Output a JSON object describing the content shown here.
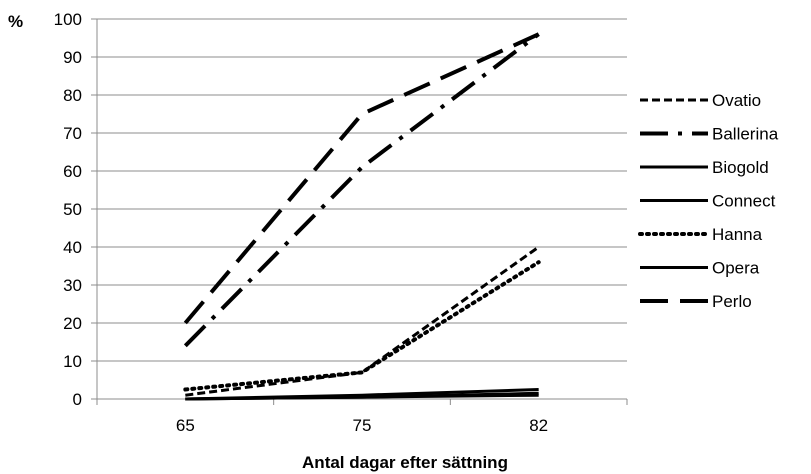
{
  "chart_data": {
    "type": "line",
    "title": "",
    "xlabel": "Antal dagar efter sättning",
    "ylabel": "%",
    "categories": [
      "65",
      "75",
      "82"
    ],
    "ylim": [
      0,
      100
    ],
    "yticks": [
      0,
      10,
      20,
      30,
      40,
      50,
      60,
      70,
      80,
      90,
      100
    ],
    "grid": "horizontal",
    "legend_position": "right",
    "series": [
      {
        "name": "Ovatio",
        "values": [
          1,
          7,
          40
        ],
        "style": "short-dash",
        "color": "#000000"
      },
      {
        "name": "Ballerina",
        "values": [
          14,
          61,
          96
        ],
        "style": "dash-dot",
        "color": "#000000"
      },
      {
        "name": "Biogold",
        "values": [
          0,
          0.5,
          1
        ],
        "style": "solid",
        "color": "#000000"
      },
      {
        "name": "Connect",
        "values": [
          0,
          1,
          2.5
        ],
        "style": "solid",
        "color": "#000000"
      },
      {
        "name": "Hanna",
        "values": [
          2.5,
          7,
          36
        ],
        "style": "dotted",
        "color": "#000000"
      },
      {
        "name": "Opera",
        "values": [
          0,
          0.5,
          1.5
        ],
        "style": "solid",
        "color": "#000000"
      },
      {
        "name": "Perlo",
        "values": [
          20,
          75,
          96
        ],
        "style": "long-dash",
        "color": "#000000"
      }
    ]
  }
}
